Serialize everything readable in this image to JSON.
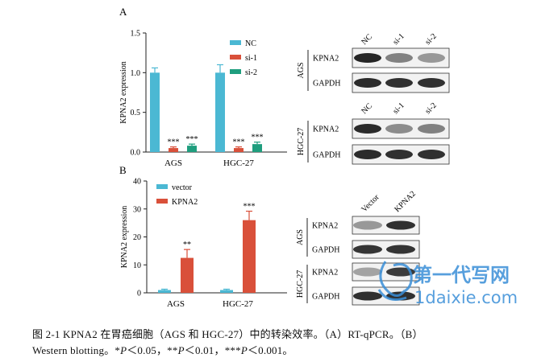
{
  "figure": {
    "panel_a_label": "A",
    "panel_b_label": "B",
    "caption": {
      "line1": "图 2-1  KPNA2 在胃癌细胞（AGS 和 HGC-27）中的转染效率。（A）RT-qPCR。（B）",
      "line2_pre": "Western blotting。*",
      "p1": "P",
      "t1": "＜0.05，**",
      "p2": "P",
      "t2": "＜0.01，***",
      "p3": "P",
      "t3": "＜0.001。"
    }
  },
  "chart_data": [
    {
      "type": "bar",
      "panel": "A",
      "categories": [
        "AGS",
        "HGC-27"
      ],
      "ylabel": "KPNA2 expression",
      "ylim": [
        0,
        1.5
      ],
      "yticks": [
        "0.0",
        "0.5",
        "1.0",
        "1.5"
      ],
      "legend_position": "top-right",
      "series": [
        {
          "name": "NC",
          "color": "#4bb8d3",
          "values": [
            1.0,
            1.0
          ],
          "errors": [
            0.06,
            0.1
          ],
          "stars": [
            "",
            ""
          ]
        },
        {
          "name": "si-1",
          "color": "#d9503a",
          "values": [
            0.05,
            0.05
          ],
          "errors": [
            0.015,
            0.015
          ],
          "stars": [
            "***",
            "***"
          ]
        },
        {
          "name": "si-2",
          "color": "#1f9e7e",
          "values": [
            0.08,
            0.1
          ],
          "errors": [
            0.02,
            0.025
          ],
          "stars": [
            "***",
            "***"
          ]
        }
      ]
    },
    {
      "type": "bar",
      "panel": "B",
      "categories": [
        "AGS",
        "HGC-27"
      ],
      "ylabel": "KPNA2 expression",
      "ylim": [
        0,
        40
      ],
      "yticks": [
        "0",
        "10",
        "20",
        "30",
        "40"
      ],
      "legend_position": "top-left",
      "series": [
        {
          "name": "vector",
          "color": "#4bb8d3",
          "values": [
            1.0,
            1.0
          ],
          "errors": [
            0.3,
            0.3
          ],
          "stars": [
            "",
            ""
          ]
        },
        {
          "name": "KPNA2",
          "color": "#d9503a",
          "values": [
            12.5,
            26.0
          ],
          "errors": [
            3.0,
            3.2
          ],
          "stars": [
            "**",
            "***"
          ]
        }
      ]
    }
  ],
  "blots": {
    "top": {
      "lanes": [
        "NC",
        "si-1",
        "si-2"
      ],
      "groups": [
        {
          "cell": "AGS",
          "rows": [
            {
              "label": "KPNA2",
              "intensity": [
                0.95,
                0.55,
                0.45
              ]
            },
            {
              "label": "GAPDH",
              "intensity": [
                0.92,
                0.9,
                0.9
              ]
            }
          ]
        },
        {
          "cell": "HGC-27",
          "rows": [
            {
              "label": "KPNA2",
              "intensity": [
                0.92,
                0.5,
                0.55
              ]
            },
            {
              "label": "GAPDH",
              "intensity": [
                0.92,
                0.9,
                0.9
              ]
            }
          ]
        }
      ]
    },
    "bottom": {
      "lanes": [
        "Vector",
        "KPNA2"
      ],
      "groups": [
        {
          "cell": "AGS",
          "rows": [
            {
              "label": "KPNA2",
              "intensity": [
                0.45,
                0.9
              ]
            },
            {
              "label": "GAPDH",
              "intensity": [
                0.88,
                0.88
              ]
            }
          ]
        },
        {
          "cell": "HGC-27",
          "rows": [
            {
              "label": "KPNA2",
              "intensity": [
                0.4,
                0.85
              ]
            },
            {
              "label": "GAPDH",
              "intensity": [
                0.9,
                0.9
              ]
            }
          ]
        }
      ]
    }
  },
  "watermark": {
    "text_cn": "第一代写网",
    "text_url": "1daixie.com",
    "color": "#3a8fd8"
  }
}
